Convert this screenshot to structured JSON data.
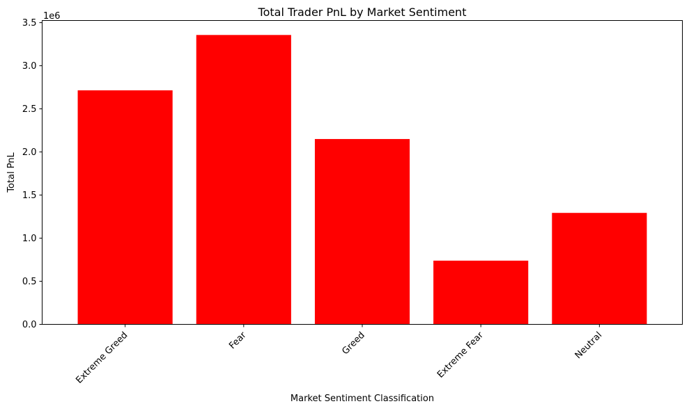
{
  "chart_data": {
    "type": "bar",
    "title": "Total Trader PnL by Market Sentiment",
    "xlabel": "Market Sentiment Classification",
    "ylabel": "Total PnL",
    "y_offset_label": "1e6",
    "categories": [
      "Extreme Greed",
      "Fear",
      "Greed",
      "Extreme Fear",
      "Neutral"
    ],
    "values": [
      2715000,
      3357000,
      2150000,
      739000,
      1293000
    ],
    "ylim": [
      0,
      3524850
    ],
    "yticks": [
      0,
      500000,
      1000000,
      1500000,
      2000000,
      2500000,
      3000000,
      3500000
    ],
    "ytick_labels": [
      "0.0",
      "0.5",
      "1.0",
      "1.5",
      "2.0",
      "2.5",
      "3.0",
      "3.5"
    ],
    "bar_color": "#ff0000",
    "grid": false,
    "legend": "none"
  }
}
